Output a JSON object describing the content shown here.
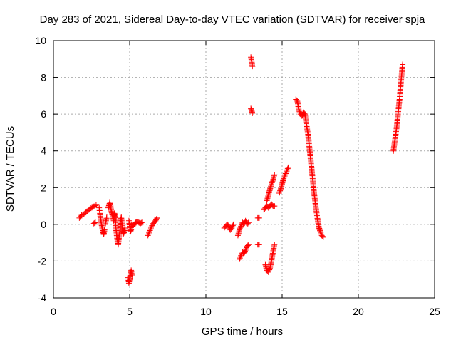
{
  "chart_data": {
    "type": "scatter",
    "title": "Day 283 of 2021, Sidereal Day-to-day VTEC variation (SDTVAR) for receiver spja",
    "xlabel": "GPS time / hours",
    "ylabel": "SDTVAR / TECUs",
    "xlim": [
      0,
      25
    ],
    "ylim": [
      -4,
      10
    ],
    "xticks": [
      0,
      5,
      10,
      15,
      20,
      25
    ],
    "yticks": [
      -4,
      -2,
      0,
      2,
      4,
      6,
      8,
      10
    ],
    "grid": true,
    "marker": "+",
    "color": "#ff0000",
    "segments": [
      {
        "x": [
          1.7,
          1.85,
          2.0,
          2.2,
          2.4,
          2.6,
          2.8
        ],
        "y": [
          0.35,
          0.5,
          0.55,
          0.7,
          0.85,
          0.95,
          1.05
        ]
      },
      {
        "x": [
          2.65,
          2.75
        ],
        "y": [
          0.05,
          0.1
        ]
      },
      {
        "x": [
          3.0,
          3.05,
          3.1,
          3.15,
          3.2,
          3.25,
          3.3,
          3.35
        ],
        "y": [
          0.9,
          0.6,
          0.3,
          0.0,
          -0.2,
          -0.4,
          -0.55,
          -0.3
        ]
      },
      {
        "x": [
          3.4,
          3.45,
          3.5
        ],
        "y": [
          0.0,
          0.2,
          0.4
        ]
      },
      {
        "x": [
          3.6,
          3.7,
          3.75,
          3.8,
          3.9,
          3.95,
          4.0,
          4.05,
          4.1,
          4.15,
          4.2,
          4.25,
          4.3,
          4.35,
          4.4,
          4.45,
          4.5,
          4.55,
          4.6,
          4.65,
          4.7
        ],
        "y": [
          0.9,
          1.2,
          1.0,
          0.7,
          0.4,
          0.2,
          0.6,
          0.5,
          -0.2,
          -0.6,
          -0.9,
          -1.1,
          -0.7,
          -0.4,
          0.2,
          0.4,
          0.0,
          -0.3,
          -0.5,
          -0.4,
          -0.2
        ]
      },
      {
        "x": [
          4.95,
          5.0,
          5.05,
          5.1
        ],
        "y": [
          0.2,
          -0.1,
          -0.4,
          -0.3
        ]
      },
      {
        "x": [
          5.1,
          5.2,
          5.3,
          5.4,
          5.5,
          5.6,
          5.7,
          5.8
        ],
        "y": [
          0.0,
          -0.1,
          0.0,
          0.1,
          0.15,
          0.1,
          0.05,
          0.1
        ]
      },
      {
        "x": [
          4.9,
          4.95,
          5.0,
          5.05,
          5.1,
          5.15
        ],
        "y": [
          -2.9,
          -3.2,
          -3.0,
          -2.7,
          -2.5,
          -2.8
        ]
      },
      {
        "x": [
          6.2,
          6.3,
          6.4,
          6.5,
          6.6,
          6.7,
          6.8
        ],
        "y": [
          -0.6,
          -0.4,
          -0.2,
          0.0,
          0.1,
          0.2,
          0.35
        ]
      },
      {
        "x": [
          11.2,
          11.3,
          11.4,
          11.5,
          11.6,
          11.7,
          11.8
        ],
        "y": [
          -0.2,
          -0.1,
          0.0,
          -0.1,
          -0.3,
          -0.2,
          0.0
        ]
      },
      {
        "x": [
          12.1,
          12.2,
          12.3,
          12.4,
          12.5,
          12.6,
          12.7,
          12.8
        ],
        "y": [
          -0.6,
          -0.3,
          -0.1,
          0.1,
          0.0,
          0.2,
          0.0,
          0.1
        ]
      },
      {
        "x": [
          12.2,
          12.3,
          12.4,
          12.5,
          12.6,
          12.7,
          12.8
        ],
        "y": [
          -1.9,
          -1.7,
          -1.5,
          -1.6,
          -1.4,
          -1.2,
          -1.1
        ]
      },
      {
        "x": [
          12.95,
          13.0,
          13.05
        ],
        "y": [
          9.1,
          8.9,
          8.6
        ]
      },
      {
        "x": [
          12.95,
          13.0,
          13.05
        ],
        "y": [
          6.3,
          6.2,
          6.05
        ]
      },
      {
        "x": [
          13.4,
          13.5
        ],
        "y": [
          -1.1,
          -1.1
        ]
      },
      {
        "x": [
          13.4,
          13.5
        ],
        "y": [
          0.35,
          0.35
        ]
      },
      {
        "x": [
          13.8,
          13.9,
          14.0,
          14.1,
          14.2,
          14.3,
          14.4,
          14.5
        ],
        "y": [
          0.8,
          0.9,
          1.0,
          0.9,
          1.0,
          1.1,
          1.0,
          1.0
        ]
      },
      {
        "x": [
          14.0,
          14.1,
          14.2,
          14.3,
          14.4,
          14.5
        ],
        "y": [
          1.3,
          1.6,
          1.9,
          2.2,
          2.4,
          2.7
        ]
      },
      {
        "x": [
          13.9,
          14.0,
          14.1,
          14.2,
          14.3,
          14.4,
          14.5
        ],
        "y": [
          -2.2,
          -2.5,
          -2.6,
          -2.4,
          -2.0,
          -1.5,
          -1.1
        ]
      },
      {
        "x": [
          14.8,
          14.9,
          15.0,
          15.1,
          15.2,
          15.3,
          15.4
        ],
        "y": [
          1.7,
          1.9,
          2.2,
          2.5,
          2.7,
          2.9,
          3.1
        ]
      },
      {
        "x": [
          15.9,
          16.0,
          16.1,
          16.2,
          16.3,
          16.4,
          16.5,
          16.6,
          16.7,
          16.8,
          16.9,
          17.0,
          17.1,
          17.2,
          17.3,
          17.4,
          17.5,
          17.6,
          17.7
        ],
        "y": [
          6.8,
          6.7,
          6.2,
          6.0,
          5.9,
          6.1,
          6.0,
          5.4,
          4.9,
          4.1,
          3.3,
          2.5,
          1.7,
          1.0,
          0.4,
          -0.1,
          -0.4,
          -0.6,
          -0.7
        ]
      },
      {
        "x": [
          22.3,
          22.4,
          22.5,
          22.6,
          22.7,
          22.8,
          22.9
        ],
        "y": [
          4.0,
          4.6,
          5.2,
          6.0,
          6.8,
          7.8,
          8.7
        ]
      }
    ]
  }
}
